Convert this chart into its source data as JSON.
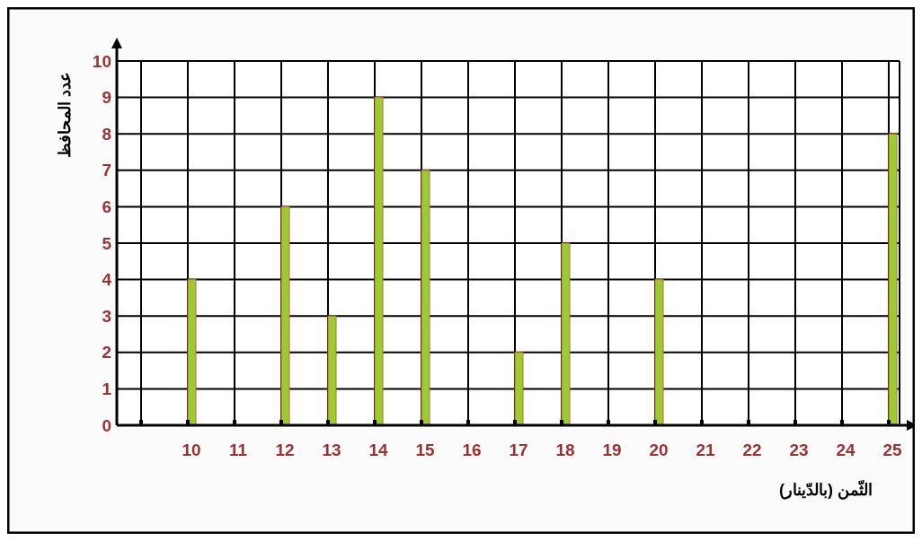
{
  "chart_data": {
    "type": "bar",
    "xlabel": "الثّمن (بالدّينار)",
    "ylabel": "عدد المحافظ",
    "categories": [
      null,
      "10",
      "11",
      "12",
      "13",
      "14",
      "15",
      "16",
      "17",
      "18",
      "19",
      "20",
      "21",
      "22",
      "23",
      "24",
      "25"
    ],
    "values": [
      0,
      4,
      0,
      6,
      3,
      9,
      7,
      0,
      2,
      5,
      0,
      4,
      0,
      0,
      0,
      0,
      8
    ],
    "color": "#99cc33",
    "ylim": [
      0,
      10
    ],
    "yticks": [
      0,
      1,
      2,
      3,
      4,
      5,
      6,
      7,
      8,
      9,
      10
    ],
    "grid": true
  }
}
